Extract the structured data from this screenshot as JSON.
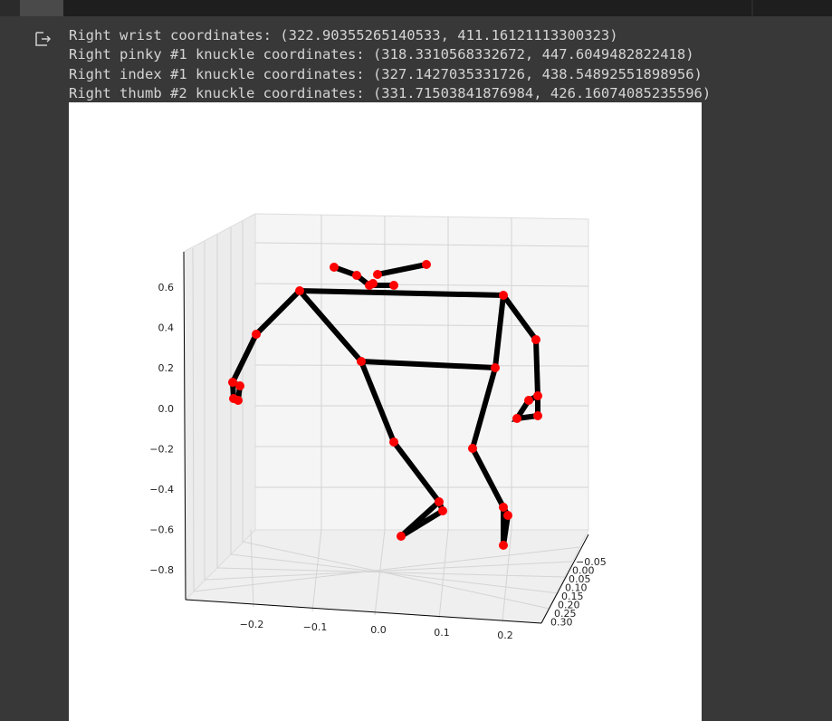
{
  "output": {
    "lines": [
      "Right wrist coordinates: (322.90355265140533, 411.16121113300323)",
      "Right pinky #1 knuckle coordinates: (318.3310568332672, 447.6049482822418)",
      "Right index #1 knuckle coordinates: (327.1427035331726, 438.54892551898956)",
      "Right thumb #2 knuckle coordinates: (331.71503841876984, 426.16074085235596)"
    ]
  },
  "plot": {
    "z_ticks": [
      "0.6",
      "0.4",
      "0.2",
      "0.0",
      "−0.2",
      "−0.4",
      "−0.6",
      "−0.8"
    ],
    "x_ticks": [
      "−0.2",
      "−0.1",
      "0.0",
      "0.1",
      "0.2"
    ],
    "y_ticks": [
      "−0.05",
      "0.00",
      "0.05",
      "0.10",
      "0.15",
      "0.20",
      "0.25",
      "0.30"
    ]
  }
}
